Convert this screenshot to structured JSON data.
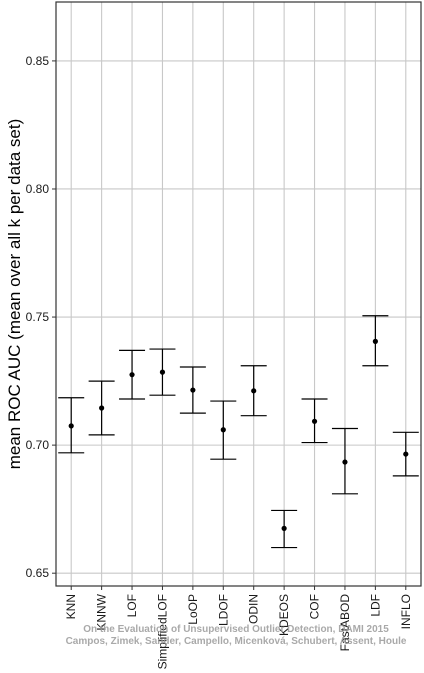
{
  "chart_data": {
    "type": "scatter",
    "subtype": "point-with-error-bars",
    "title": "",
    "xlabel": "",
    "ylabel": "mean ROC AUC (mean over all k per data set)",
    "ylim": [
      0.645,
      0.873
    ],
    "yticks": [
      0.65,
      0.7,
      0.75,
      0.8,
      0.85
    ],
    "ytick_labels": [
      "0.65",
      "0.70",
      "0.75",
      "0.80",
      "0.85"
    ],
    "grid": true,
    "categories": [
      "KNN",
      "KNNW",
      "LOF",
      "SimplifiedLOF",
      "LoOP",
      "LDOF",
      "ODIN",
      "KDEOS",
      "COF",
      "FastABOD",
      "LDF",
      "INFLO"
    ],
    "series": [
      {
        "mean": [
          0.7075,
          0.7145,
          0.7275,
          0.7285,
          0.7215,
          0.706,
          0.7212,
          0.6675,
          0.7093,
          0.6934,
          0.7405,
          0.6965
        ],
        "lower": [
          0.697,
          0.704,
          0.718,
          0.7195,
          0.7125,
          0.6945,
          0.7115,
          0.66,
          0.701,
          0.681,
          0.731,
          0.688
        ],
        "upper": [
          0.7185,
          0.725,
          0.737,
          0.7375,
          0.7305,
          0.7172,
          0.731,
          0.6745,
          0.718,
          0.7065,
          0.7505,
          0.705
        ]
      }
    ],
    "watermark_lines": [
      "On the Evaluation of Unsupervised Outlier Detection, DAMI 2015",
      "Campos, Zimek, Sander, Campello, Micenková, Schubert, Assent, Houle"
    ],
    "colors": {
      "background": "#ffffff",
      "grid": "#c8c8c8",
      "panel_border": "#333333",
      "marks": "#000000"
    }
  }
}
